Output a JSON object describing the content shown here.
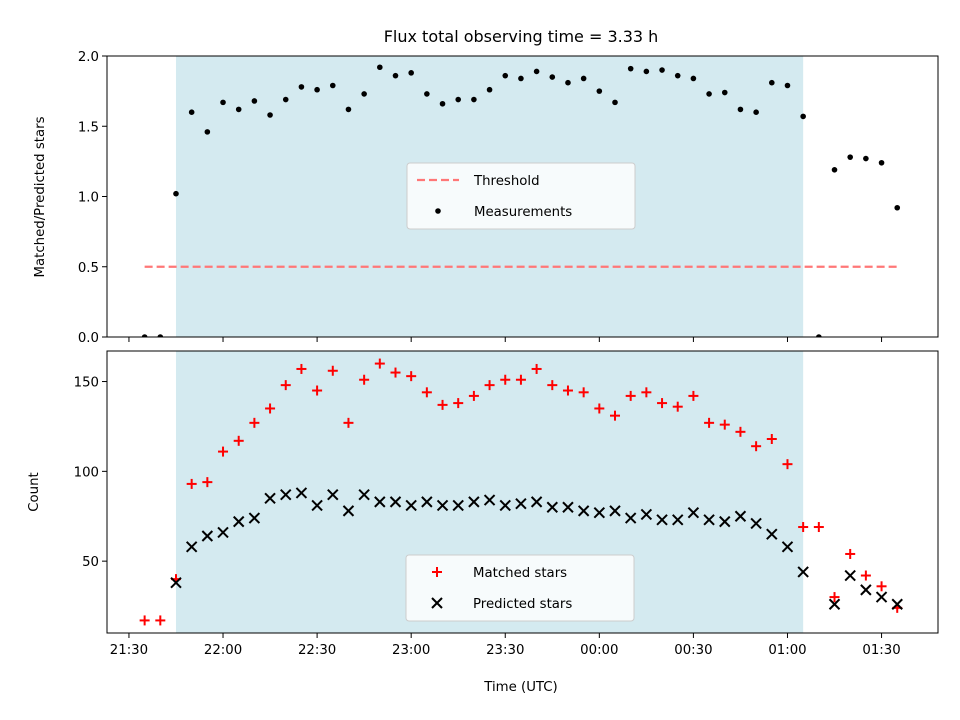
{
  "chart_data": {
    "type": "scatter",
    "title": "Flux total observing time = 3.33 h",
    "xlabel": "Time (UTC)",
    "x_unit": "HH:MM",
    "x_ticks": [
      "21:30",
      "22:00",
      "22:30",
      "23:00",
      "23:30",
      "00:00",
      "00:30",
      "01:00",
      "01:30"
    ],
    "xlim": [
      "21:23",
      "01:48"
    ],
    "shaded_interval": [
      "21:45",
      "01:05"
    ],
    "shade_color": "#d4eaf0",
    "panels": [
      {
        "id": "ratio",
        "ylabel": "Matched/Predicted stars",
        "ylim": [
          0,
          2.0
        ],
        "y_ticks": [
          "0.0",
          "0.5",
          "1.0",
          "1.5",
          "2.0"
        ],
        "y_tick_values": [
          0,
          0.5,
          1.0,
          1.5,
          2.0
        ],
        "legend": {
          "placement": "center",
          "entries": [
            "Threshold",
            "Measurements"
          ]
        },
        "threshold": {
          "name": "Threshold",
          "y": 0.5,
          "x_range": [
            "21:35",
            "01:35"
          ],
          "color": "#ff7777",
          "style": "dashed"
        },
        "series": [
          {
            "name": "Measurements",
            "marker": "dot",
            "color": "#000000",
            "points": [
              [
                "21:35",
                0.0
              ],
              [
                "21:40",
                0.0
              ],
              [
                "21:45",
                1.02
              ],
              [
                "21:50",
                1.6
              ],
              [
                "21:55",
                1.46
              ],
              [
                "22:00",
                1.67
              ],
              [
                "22:05",
                1.62
              ],
              [
                "22:10",
                1.68
              ],
              [
                "22:15",
                1.58
              ],
              [
                "22:20",
                1.69
              ],
              [
                "22:25",
                1.78
              ],
              [
                "22:30",
                1.76
              ],
              [
                "22:35",
                1.79
              ],
              [
                "22:40",
                1.62
              ],
              [
                "22:45",
                1.73
              ],
              [
                "22:50",
                1.92
              ],
              [
                "22:55",
                1.86
              ],
              [
                "23:00",
                1.88
              ],
              [
                "23:05",
                1.73
              ],
              [
                "23:10",
                1.66
              ],
              [
                "23:15",
                1.69
              ],
              [
                "23:20",
                1.69
              ],
              [
                "23:25",
                1.76
              ],
              [
                "23:30",
                1.86
              ],
              [
                "23:35",
                1.84
              ],
              [
                "23:40",
                1.89
              ],
              [
                "23:45",
                1.85
              ],
              [
                "23:50",
                1.81
              ],
              [
                "23:55",
                1.84
              ],
              [
                "00:00",
                1.75
              ],
              [
                "00:05",
                1.67
              ],
              [
                "00:10",
                1.91
              ],
              [
                "00:15",
                1.89
              ],
              [
                "00:20",
                1.9
              ],
              [
                "00:25",
                1.86
              ],
              [
                "00:30",
                1.84
              ],
              [
                "00:35",
                1.73
              ],
              [
                "00:40",
                1.74
              ],
              [
                "00:45",
                1.62
              ],
              [
                "00:50",
                1.6
              ],
              [
                "00:55",
                1.81
              ],
              [
                "01:00",
                1.79
              ],
              [
                "01:05",
                1.57
              ],
              [
                "01:10",
                0.0
              ],
              [
                "01:15",
                1.19
              ],
              [
                "01:20",
                1.28
              ],
              [
                "01:25",
                1.27
              ],
              [
                "01:30",
                1.24
              ],
              [
                "01:35",
                0.92
              ]
            ]
          }
        ]
      },
      {
        "id": "counts",
        "ylabel": "Count",
        "ylim": [
          10,
          167
        ],
        "y_ticks": [
          "50",
          "100",
          "150"
        ],
        "y_tick_values": [
          50,
          100,
          150
        ],
        "legend": {
          "placement": "lower center",
          "entries": [
            "Matched stars",
            "Predicted stars"
          ]
        },
        "series": [
          {
            "name": "Matched stars",
            "marker": "plus",
            "color": "#ff0000",
            "points": [
              [
                "21:35",
                17
              ],
              [
                "21:40",
                17
              ],
              [
                "21:45",
                40
              ],
              [
                "21:50",
                93
              ],
              [
                "21:55",
                94
              ],
              [
                "22:00",
                111
              ],
              [
                "22:05",
                117
              ],
              [
                "22:10",
                127
              ],
              [
                "22:15",
                135
              ],
              [
                "22:20",
                148
              ],
              [
                "22:25",
                157
              ],
              [
                "22:30",
                145
              ],
              [
                "22:35",
                156
              ],
              [
                "22:40",
                127
              ],
              [
                "22:45",
                151
              ],
              [
                "22:50",
                160
              ],
              [
                "22:55",
                155
              ],
              [
                "23:00",
                153
              ],
              [
                "23:05",
                144
              ],
              [
                "23:10",
                137
              ],
              [
                "23:15",
                138
              ],
              [
                "23:20",
                142
              ],
              [
                "23:25",
                148
              ],
              [
                "23:30",
                151
              ],
              [
                "23:35",
                151
              ],
              [
                "23:40",
                157
              ],
              [
                "23:45",
                148
              ],
              [
                "23:50",
                145
              ],
              [
                "23:55",
                144
              ],
              [
                "00:00",
                135
              ],
              [
                "00:05",
                131
              ],
              [
                "00:10",
                142
              ],
              [
                "00:15",
                144
              ],
              [
                "00:20",
                138
              ],
              [
                "00:25",
                136
              ],
              [
                "00:30",
                142
              ],
              [
                "00:35",
                127
              ],
              [
                "00:40",
                126
              ],
              [
                "00:45",
                122
              ],
              [
                "00:50",
                114
              ],
              [
                "00:55",
                118
              ],
              [
                "01:00",
                104
              ],
              [
                "01:05",
                69
              ],
              [
                "01:10",
                69
              ],
              [
                "01:15",
                30
              ],
              [
                "01:20",
                54
              ],
              [
                "01:25",
                42
              ],
              [
                "01:30",
                36
              ],
              [
                "01:35",
                24
              ]
            ]
          },
          {
            "name": "Predicted stars",
            "marker": "x",
            "color": "#000000",
            "points": [
              [
                "21:45",
                38
              ],
              [
                "21:50",
                58
              ],
              [
                "21:55",
                64
              ],
              [
                "22:00",
                66
              ],
              [
                "22:05",
                72
              ],
              [
                "22:10",
                74
              ],
              [
                "22:15",
                85
              ],
              [
                "22:20",
                87
              ],
              [
                "22:25",
                88
              ],
              [
                "22:30",
                81
              ],
              [
                "22:35",
                87
              ],
              [
                "22:40",
                78
              ],
              [
                "22:45",
                87
              ],
              [
                "22:50",
                83
              ],
              [
                "22:55",
                83
              ],
              [
                "23:00",
                81
              ],
              [
                "23:05",
                83
              ],
              [
                "23:10",
                81
              ],
              [
                "23:15",
                81
              ],
              [
                "23:20",
                83
              ],
              [
                "23:25",
                84
              ],
              [
                "23:30",
                81
              ],
              [
                "23:35",
                82
              ],
              [
                "23:40",
                83
              ],
              [
                "23:45",
                80
              ],
              [
                "23:50",
                80
              ],
              [
                "23:55",
                78
              ],
              [
                "00:00",
                77
              ],
              [
                "00:05",
                78
              ],
              [
                "00:10",
                74
              ],
              [
                "00:15",
                76
              ],
              [
                "00:20",
                73
              ],
              [
                "00:25",
                73
              ],
              [
                "00:30",
                77
              ],
              [
                "00:35",
                73
              ],
              [
                "00:40",
                72
              ],
              [
                "00:45",
                75
              ],
              [
                "00:50",
                71
              ],
              [
                "00:55",
                65
              ],
              [
                "01:00",
                58
              ],
              [
                "01:05",
                44
              ],
              [
                "01:15",
                26
              ],
              [
                "01:20",
                42
              ],
              [
                "01:25",
                34
              ],
              [
                "01:30",
                30
              ],
              [
                "01:35",
                26
              ]
            ]
          }
        ]
      }
    ]
  }
}
